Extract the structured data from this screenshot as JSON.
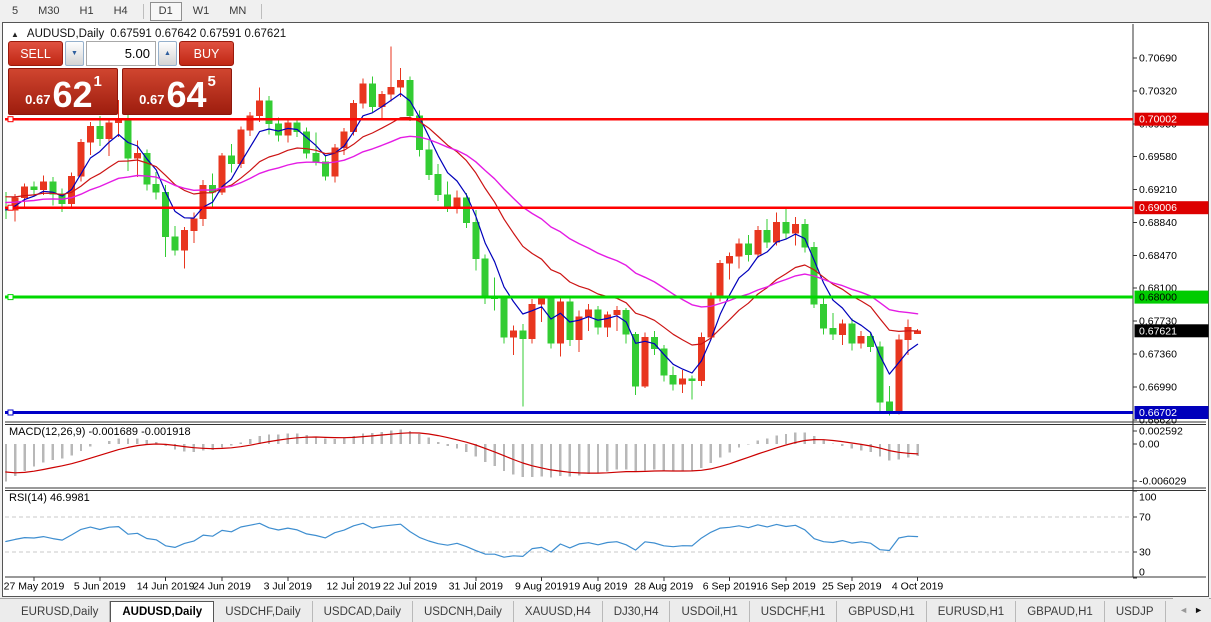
{
  "toolbar": {
    "timeframes": [
      {
        "label": "5",
        "active": false,
        "divider_after": false
      },
      {
        "label": "M30",
        "active": false,
        "divider_after": false
      },
      {
        "label": "H1",
        "active": false,
        "divider_after": false
      },
      {
        "label": "H4",
        "active": false,
        "divider_after": true
      },
      {
        "label": "D1",
        "active": true,
        "divider_after": false
      },
      {
        "label": "W1",
        "active": false,
        "divider_after": false
      },
      {
        "label": "MN",
        "active": false,
        "divider_after": true
      }
    ]
  },
  "chart_header": {
    "collapse_icon": "▲",
    "symbol": "AUDUSD,Daily",
    "ohlc": "0.67591 0.67642 0.67591 0.67621"
  },
  "trade_panel": {
    "sell_label": "SELL",
    "buy_label": "BUY",
    "volume": "5.00",
    "volume_down_glyph": "▼",
    "volume_up_glyph": "▲",
    "sell_price": {
      "prefix": "0.67",
      "big": "62",
      "sup": "1"
    },
    "buy_price": {
      "prefix": "0.67",
      "big": "64",
      "sup": "5"
    }
  },
  "chart_data": {
    "type": "candlestick",
    "symbol": "AUDUSD",
    "timeframe": "Daily",
    "colors": {
      "up": "#e8361f",
      "down": "#33cc33",
      "ma_fast": "#0000bb",
      "ma_mid": "#cc1414",
      "ma_slow": "#e41ce4"
    },
    "ma_periods": {
      "fast": 5,
      "mid": 15,
      "slow": 30
    },
    "y_axis_ticks": [
      "0.70690",
      "0.70320",
      "0.69950",
      "0.69580",
      "0.69210",
      "0.68840",
      "0.68470",
      "0.68100",
      "0.67730",
      "0.67360",
      "0.66990",
      "0.66620"
    ],
    "hlines": [
      {
        "price": 0.70002,
        "label": "0.70002",
        "color": "#ff0000",
        "tag_bg": "#dd0000",
        "tag_fg": "#ffffff",
        "width": 2.5
      },
      {
        "price": 0.69006,
        "label": "0.69006",
        "color": "#ff0000",
        "tag_bg": "#dd0000",
        "tag_fg": "#ffffff",
        "width": 2.5
      },
      {
        "price": 0.68,
        "label": "0.68000",
        "color": "#00d800",
        "tag_bg": "#00cc00",
        "tag_fg": "#000000",
        "width": 3
      },
      {
        "price": 0.66702,
        "label": "0.66702",
        "color": "#0000c8",
        "tag_bg": "#0000bb",
        "tag_fg": "#ffffff",
        "width": 3
      }
    ],
    "current_price": {
      "price": 0.67621,
      "label": "0.67621",
      "tag_bg": "#000000",
      "tag_fg": "#ffffff"
    },
    "x_ticks": [
      {
        "i": 3,
        "label": "27 May 2019"
      },
      {
        "i": 10,
        "label": "5 Jun 2019"
      },
      {
        "i": 17,
        "label": "14 Jun 2019"
      },
      {
        "i": 23,
        "label": "24 Jun 2019"
      },
      {
        "i": 30,
        "label": "3 Jul 2019"
      },
      {
        "i": 37,
        "label": "12 Jul 2019"
      },
      {
        "i": 43,
        "label": "22 Jul 2019"
      },
      {
        "i": 50,
        "label": "31 Jul 2019"
      },
      {
        "i": 57,
        "label": "9 Aug 2019"
      },
      {
        "i": 63,
        "label": "19 Aug 2019"
      },
      {
        "i": 70,
        "label": "28 Aug 2019"
      },
      {
        "i": 77,
        "label": "6 Sep 2019"
      },
      {
        "i": 83,
        "label": "16 Sep 2019"
      },
      {
        "i": 90,
        "label": "25 Sep 2019"
      },
      {
        "i": 97,
        "label": "4 Oct 2019"
      }
    ],
    "candles": [
      [
        0.69,
        0.6918,
        0.6888,
        0.6898
      ],
      [
        0.6898,
        0.6916,
        0.6885,
        0.6912
      ],
      [
        0.6912,
        0.6928,
        0.6902,
        0.6924
      ],
      [
        0.6924,
        0.693,
        0.6914,
        0.6921
      ],
      [
        0.6921,
        0.6937,
        0.6915,
        0.693
      ],
      [
        0.693,
        0.6935,
        0.6903,
        0.6916
      ],
      [
        0.6916,
        0.6922,
        0.6896,
        0.6905
      ],
      [
        0.6905,
        0.694,
        0.6899,
        0.6936
      ],
      [
        0.6936,
        0.6978,
        0.693,
        0.6974
      ],
      [
        0.6974,
        0.6997,
        0.696,
        0.6992
      ],
      [
        0.6992,
        0.7004,
        0.697,
        0.6978
      ],
      [
        0.6978,
        0.7,
        0.6959,
        0.6996
      ],
      [
        0.6996,
        0.7022,
        0.698,
        0.7
      ],
      [
        0.7,
        0.7012,
        0.6942,
        0.6956
      ],
      [
        0.6956,
        0.6976,
        0.6935,
        0.6962
      ],
      [
        0.6962,
        0.6966,
        0.692,
        0.6927
      ],
      [
        0.6927,
        0.6941,
        0.691,
        0.6918
      ],
      [
        0.6918,
        0.6926,
        0.6845,
        0.6868
      ],
      [
        0.6868,
        0.688,
        0.6847,
        0.6853
      ],
      [
        0.6853,
        0.6879,
        0.6832,
        0.6875
      ],
      [
        0.6875,
        0.6895,
        0.6861,
        0.6888
      ],
      [
        0.6888,
        0.6932,
        0.688,
        0.6926
      ],
      [
        0.6926,
        0.6939,
        0.6902,
        0.6918
      ],
      [
        0.6918,
        0.6962,
        0.6915,
        0.6959
      ],
      [
        0.6959,
        0.6972,
        0.694,
        0.695
      ],
      [
        0.695,
        0.6992,
        0.6945,
        0.6988
      ],
      [
        0.6988,
        0.7008,
        0.6981,
        0.7004
      ],
      [
        0.7004,
        0.7036,
        0.6997,
        0.7021
      ],
      [
        0.7021,
        0.7026,
        0.6983,
        0.6995
      ],
      [
        0.6995,
        0.7002,
        0.6975,
        0.6982
      ],
      [
        0.6982,
        0.7,
        0.6974,
        0.6996
      ],
      [
        0.6996,
        0.7001,
        0.698,
        0.6986
      ],
      [
        0.6986,
        0.6991,
        0.6956,
        0.6962
      ],
      [
        0.6962,
        0.6985,
        0.6948,
        0.6952
      ],
      [
        0.6952,
        0.6959,
        0.6931,
        0.6936
      ],
      [
        0.6936,
        0.6972,
        0.6929,
        0.6968
      ],
      [
        0.6968,
        0.699,
        0.696,
        0.6986
      ],
      [
        0.6986,
        0.7022,
        0.6982,
        0.7018
      ],
      [
        0.7018,
        0.7046,
        0.7012,
        0.704
      ],
      [
        0.704,
        0.7048,
        0.7008,
        0.7014
      ],
      [
        0.7014,
        0.7032,
        0.7,
        0.7028
      ],
      [
        0.7028,
        0.7082,
        0.702,
        0.7036
      ],
      [
        0.7036,
        0.7058,
        0.7025,
        0.7044
      ],
      [
        0.7044,
        0.7048,
        0.6998,
        0.7004
      ],
      [
        0.7004,
        0.701,
        0.6958,
        0.6966
      ],
      [
        0.6966,
        0.6978,
        0.6932,
        0.6938
      ],
      [
        0.6938,
        0.695,
        0.6908,
        0.6915
      ],
      [
        0.6915,
        0.693,
        0.6896,
        0.6902
      ],
      [
        0.6902,
        0.692,
        0.6894,
        0.6912
      ],
      [
        0.6912,
        0.6917,
        0.6878,
        0.6884
      ],
      [
        0.6884,
        0.6898,
        0.683,
        0.6843
      ],
      [
        0.6843,
        0.6848,
        0.6792,
        0.68
      ],
      [
        0.68,
        0.6822,
        0.6785,
        0.6798
      ],
      [
        0.6798,
        0.6801,
        0.6748,
        0.6755
      ],
      [
        0.6755,
        0.6768,
        0.6735,
        0.6762
      ],
      [
        0.6762,
        0.677,
        0.6677,
        0.6753
      ],
      [
        0.6753,
        0.6798,
        0.6748,
        0.6792
      ],
      [
        0.6792,
        0.6802,
        0.6772,
        0.6798
      ],
      [
        0.6798,
        0.68,
        0.6742,
        0.6748
      ],
      [
        0.6748,
        0.68,
        0.6733,
        0.6795
      ],
      [
        0.6795,
        0.68,
        0.6745,
        0.6752
      ],
      [
        0.6752,
        0.6785,
        0.6738,
        0.6778
      ],
      [
        0.6778,
        0.6792,
        0.6762,
        0.6786
      ],
      [
        0.6786,
        0.679,
        0.6758,
        0.6766
      ],
      [
        0.6766,
        0.6784,
        0.6755,
        0.678
      ],
      [
        0.678,
        0.679,
        0.6762,
        0.6785
      ],
      [
        0.6785,
        0.6788,
        0.6748,
        0.6758
      ],
      [
        0.6758,
        0.6761,
        0.669,
        0.67
      ],
      [
        0.67,
        0.676,
        0.6698,
        0.6755
      ],
      [
        0.6755,
        0.6762,
        0.6735,
        0.6742
      ],
      [
        0.6742,
        0.6746,
        0.6705,
        0.6712
      ],
      [
        0.6712,
        0.6722,
        0.6695,
        0.6702
      ],
      [
        0.6702,
        0.6718,
        0.6692,
        0.6708
      ],
      [
        0.6708,
        0.6712,
        0.6685,
        0.6706
      ],
      [
        0.6706,
        0.676,
        0.67,
        0.6755
      ],
      [
        0.6755,
        0.6805,
        0.6752,
        0.68
      ],
      [
        0.68,
        0.6842,
        0.6795,
        0.6838
      ],
      [
        0.6838,
        0.685,
        0.682,
        0.6846
      ],
      [
        0.6846,
        0.6866,
        0.6832,
        0.686
      ],
      [
        0.686,
        0.687,
        0.684,
        0.6848
      ],
      [
        0.6848,
        0.688,
        0.6844,
        0.6875
      ],
      [
        0.6875,
        0.6888,
        0.6855,
        0.6862
      ],
      [
        0.6862,
        0.6895,
        0.6858,
        0.6884
      ],
      [
        0.6884,
        0.6901,
        0.6866,
        0.6872
      ],
      [
        0.6872,
        0.689,
        0.6858,
        0.6882
      ],
      [
        0.6882,
        0.6888,
        0.685,
        0.6856
      ],
      [
        0.6856,
        0.6862,
        0.6788,
        0.6792
      ],
      [
        0.6792,
        0.68,
        0.6758,
        0.6765
      ],
      [
        0.6765,
        0.6782,
        0.6752,
        0.6758
      ],
      [
        0.6758,
        0.6775,
        0.6746,
        0.677
      ],
      [
        0.677,
        0.6776,
        0.674,
        0.6748
      ],
      [
        0.6748,
        0.6762,
        0.6742,
        0.6756
      ],
      [
        0.6756,
        0.6761,
        0.6738,
        0.6744
      ],
      [
        0.6744,
        0.675,
        0.667,
        0.6682
      ],
      [
        0.6682,
        0.67,
        0.6667,
        0.6672
      ],
      [
        0.6672,
        0.6758,
        0.6668,
        0.6752
      ],
      [
        0.6752,
        0.6775,
        0.6735,
        0.6766
      ],
      [
        0.67591,
        0.67642,
        0.67591,
        0.67621
      ]
    ],
    "indicators": {
      "macd": {
        "label": "MACD(12,26,9)",
        "values": "-0.001689 -0.001918",
        "axis": [
          {
            "v": 0.002592,
            "label": "0.002592"
          },
          {
            "v": 0,
            "label": "0.00"
          },
          {
            "v": -0.006029,
            "label": "-0.006029"
          }
        ],
        "bar_color": "#b8b8b8",
        "signal_color": "#cc0000"
      },
      "rsi": {
        "label": "RSI(14)",
        "value": "46.9981",
        "axis": [
          {
            "v": 100,
            "label": "100"
          },
          {
            "v": 70,
            "label": "70"
          },
          {
            "v": 30,
            "label": "30"
          },
          {
            "v": 0,
            "label": "0"
          }
        ],
        "levels": [
          70,
          30
        ],
        "color": "#3e8ed0",
        "level_color": "#c8c8c8"
      }
    }
  },
  "tabs": {
    "active_index": 1,
    "items": [
      "EURUSD,Daily",
      "AUDUSD,Daily",
      "USDCHF,Daily",
      "USDCAD,Daily",
      "USDCNH,Daily",
      "XAUUSD,H4",
      "DJ30,H4",
      "USDOil,H1",
      "USDCHF,H1",
      "GBPUSD,H1",
      "EURUSD,H1",
      "GBPAUD,H1",
      "USDJP"
    ],
    "nav_left": "◄",
    "nav_right": "►"
  }
}
